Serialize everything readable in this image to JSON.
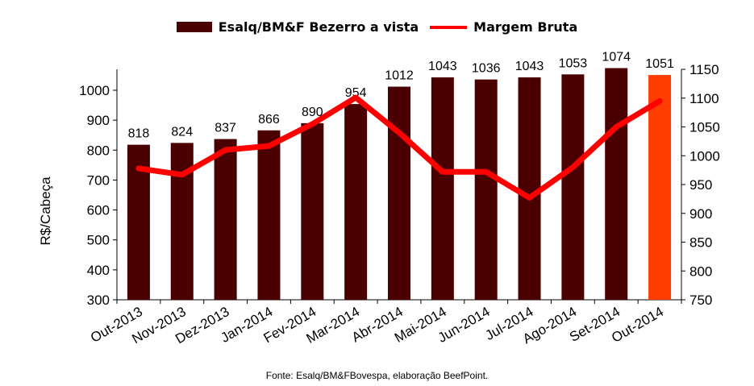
{
  "chart_data": {
    "type": "bar",
    "categories": [
      "Out-2013",
      "Nov-2013",
      "Dez-2013",
      "Jan-2014",
      "Fev-2014",
      "Mar-2014",
      "Abr-2014",
      "Mai-2014",
      "Jun-2014",
      "Jul-2014",
      "Ago-2014",
      "Set-2014",
      "Out-2014"
    ],
    "series": [
      {
        "name": "Esalq/BM&F Bezerro a vista",
        "type": "bar",
        "axis": "left",
        "values": [
          818,
          824,
          837,
          866,
          890,
          954,
          1012,
          1043,
          1036,
          1043,
          1053,
          1074,
          1051
        ],
        "color": "#4a0000",
        "highlight_last_color": "#ff3d00"
      },
      {
        "name": "Margem Bruta",
        "type": "line",
        "axis": "right",
        "values": [
          978,
          967,
          1010,
          1017,
          1055,
          1101,
          1040,
          972,
          972,
          927,
          980,
          1050,
          1095
        ],
        "color": "#ff0000"
      }
    ],
    "ylabel": "R$/Cabeça",
    "ylim": [
      300,
      1050
    ],
    "yticks": [
      300,
      400,
      500,
      600,
      700,
      800,
      900,
      1000
    ],
    "y2lim": [
      750,
      1150
    ],
    "y2ticks": [
      750,
      800,
      850,
      900,
      950,
      1000,
      1050,
      1100,
      1150
    ],
    "legend_position": "top-center",
    "grid": false
  },
  "source": "Fonte:  Esalq/BM&FBovespa,  elaboração  BeefPoint."
}
